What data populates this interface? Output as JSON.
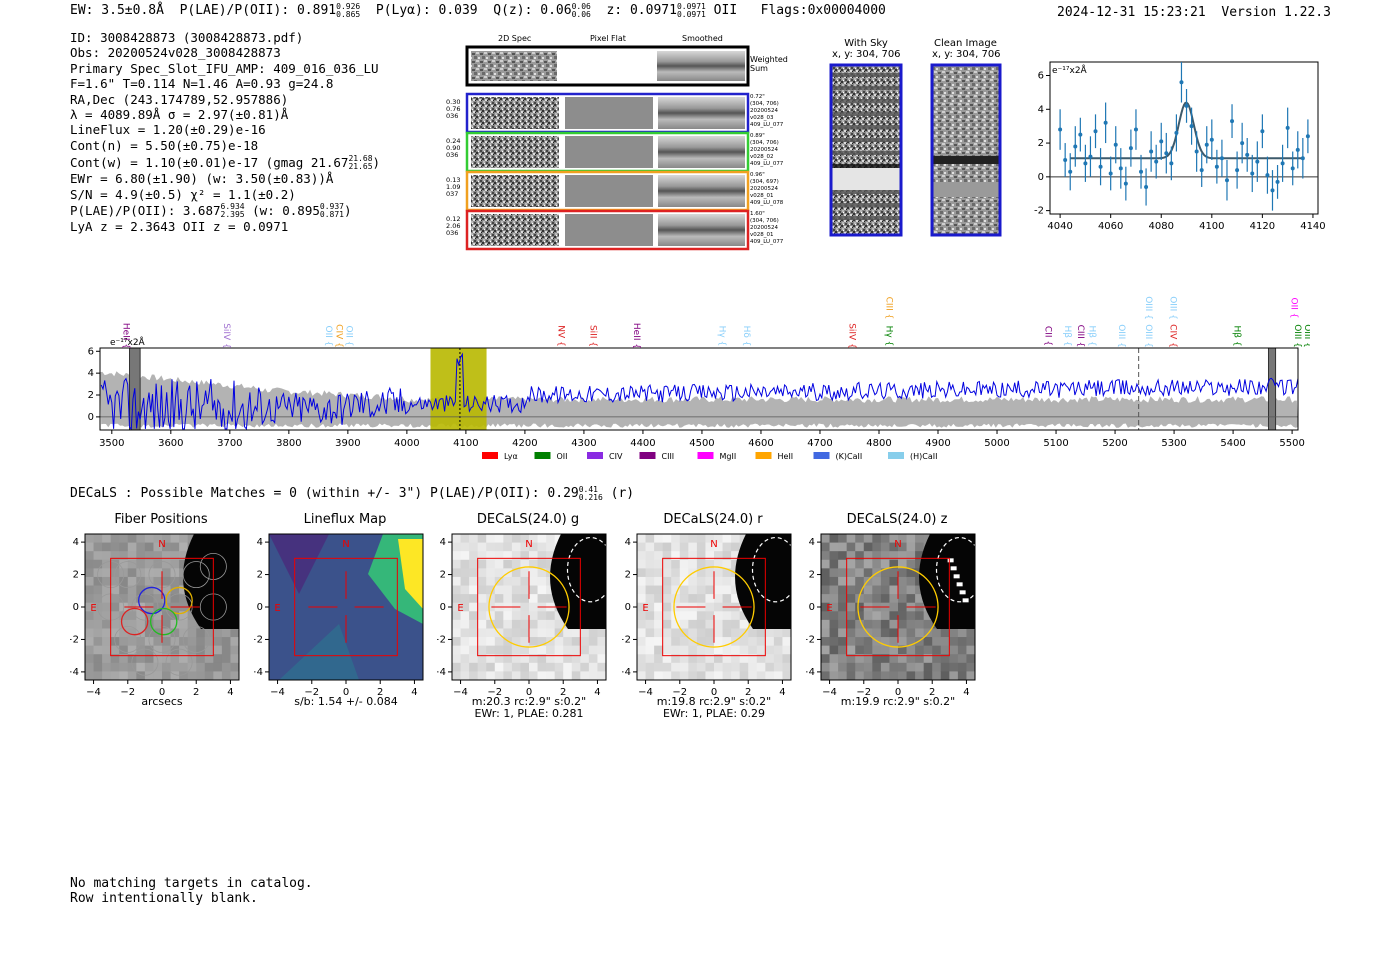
{
  "header": {
    "ew": "EW: 3.5±0.8Å",
    "plae": "P(LAE)/P(OII): 0.891",
    "plae_hi": "0.926",
    "plae_lo": "0.865",
    "plya": "P(Lyα): 0.039",
    "qz": "Q(z): 0.06",
    "qz_hi": "0.06",
    "qz_lo": "0.06",
    "z": "z: 0.0971",
    "z_hi": "0.0971",
    "z_lo": "0.0971",
    "z_line": "OII",
    "flags": "Flags:0x00004000",
    "timestamp": "2024-12-31 15:23:21",
    "version": "Version 1.22.3"
  },
  "info": {
    "lines": [
      "ID: 3008428873 (3008428873.pdf)",
      "Obs: 20200524v028_3008428873",
      "Primary Spec_Slot_IFU_AMP: 409_016_036_LU",
      "F=1.6\"  T=0.114  N=1.46  A=0.93  g=24.8",
      "RA,Dec (243.174789,52.957886)",
      "λ = 4089.89Å   σ = 2.97(±0.81)Å",
      "LineFlux = 1.20(±0.29)e-16",
      "Cont(n) = 5.50(±0.75)e-18"
    ],
    "contw": "Cont(w) = 1.10(±0.01)e-17 (gmag 21.67",
    "contw_hi": "21.68",
    "contw_lo": "21.65",
    "contw_end": ")",
    "ewr": "EWr = 6.80(±1.90) (w: 3.50(±0.83))Å",
    "sn": "S/N = 4.9(±0.5)  χ² = 1.1(±0.2)",
    "plae": "P(LAE)/P(OII): 3.687",
    "plae_hi": "6.934",
    "plae_lo": "2.395",
    "plae_w": "(w: 0.895",
    "plae_w_hi": "0.937",
    "plae_w_lo": "0.871",
    "plae_w_end": ")",
    "lyaz": "LyA z = 2.3643   OII z = 0.0971"
  },
  "cutouts": {
    "headers": [
      "2D Spec",
      "Pixel Flat",
      "Smoothed"
    ],
    "weighted_label": "Weighted Sum",
    "rows": [
      {
        "color": "#2222cc",
        "left": [
          "0.30",
          "0.76",
          "036"
        ],
        "right": [
          "0.72\"",
          "(304, 706)",
          "20200524",
          "v028_03",
          "409_LU_077"
        ]
      },
      {
        "color": "#33cc33",
        "left": [
          "0.24",
          "0.90",
          "036"
        ],
        "right": [
          "0.89\"",
          "(304, 706)",
          "20200524",
          "v028_02",
          "409_LU_077"
        ]
      },
      {
        "color": "#f0a020",
        "left": [
          "0.13",
          "1.09",
          "037"
        ],
        "right": [
          "0.96\"",
          "(304, 697)",
          "20200524",
          "v028_01",
          "409_LU_078"
        ]
      },
      {
        "color": "#dd2222",
        "left": [
          "0.12",
          "2.06",
          "036"
        ],
        "right": [
          "1.60\"",
          "(304, 706)",
          "20200524",
          "v028_01",
          "409_LU_077"
        ]
      }
    ]
  },
  "sky": {
    "with_sky_title": "With Sky",
    "with_sky_coords": "x, y: 304, 706",
    "clean_title": "Clean Image",
    "clean_coords": "x, y: 304, 706"
  },
  "chart_data": [
    {
      "type": "scatter",
      "name": "line-fit",
      "ylabel_scale": "e⁻¹⁷x2Å",
      "xlim": [
        4036,
        4142
      ],
      "ylim": [
        -2.2,
        6.8
      ],
      "xticks": [
        4040,
        4060,
        4080,
        4100,
        4120,
        4140
      ],
      "yticks": [
        -2,
        0,
        2,
        4,
        6
      ],
      "x": [
        4040,
        4042,
        4044,
        4046,
        4048,
        4050,
        4052,
        4054,
        4056,
        4058,
        4060,
        4062,
        4064,
        4066,
        4068,
        4070,
        4072,
        4074,
        4076,
        4078,
        4080,
        4082,
        4084,
        4086,
        4088,
        4090,
        4092,
        4094,
        4096,
        4098,
        4100,
        4102,
        4104,
        4106,
        4108,
        4110,
        4112,
        4114,
        4116,
        4118,
        4120,
        4122,
        4124,
        4126,
        4128,
        4130,
        4132,
        4134,
        4136,
        4138
      ],
      "y": [
        2.8,
        1.0,
        0.3,
        1.8,
        2.5,
        0.8,
        1.2,
        2.7,
        0.6,
        3.2,
        0.2,
        1.9,
        0.5,
        -0.4,
        1.7,
        2.8,
        0.3,
        -0.6,
        1.5,
        0.9,
        2.1,
        1.4,
        0.8,
        2.6,
        5.6,
        4.2,
        3.0,
        1.5,
        0.4,
        1.9,
        2.2,
        0.6,
        1.1,
        -0.2,
        3.3,
        0.4,
        2.0,
        1.3,
        0.2,
        0.9,
        2.7,
        0.1,
        -0.8,
        -0.3,
        0.8,
        2.9,
        0.5,
        1.6,
        1.1,
        2.4
      ],
      "yerr": [
        1.2,
        1.0,
        1.1,
        1.2,
        1.0,
        1.1,
        1.2,
        1.0,
        1.1,
        1.2,
        1.0,
        1.1,
        1.2,
        1.0,
        1.1,
        1.2,
        1.0,
        1.1,
        1.2,
        1.0,
        1.1,
        1.2,
        1.0,
        1.1,
        1.2,
        1.0,
        1.1,
        1.2,
        1.0,
        1.1,
        1.2,
        1.0,
        1.1,
        1.2,
        1.0,
        1.1,
        1.2,
        1.0,
        1.1,
        1.2,
        1.0,
        1.1,
        1.2,
        1.0,
        1.1,
        1.2,
        1.0,
        1.1,
        1.2,
        1.0
      ],
      "fit": {
        "continuum": 1.1,
        "amplitude": 3.3,
        "center": 4089.9,
        "sigma": 2.97
      }
    },
    {
      "type": "line",
      "name": "full-spectrum",
      "ylabel_scale": "e⁻¹⁷x2Å",
      "xlim": [
        3480,
        5510
      ],
      "ylim": [
        -1.2,
        6.3
      ],
      "xticks": [
        3500,
        3600,
        3700,
        3800,
        3900,
        4000,
        4100,
        4200,
        4300,
        4400,
        4500,
        4600,
        4700,
        4800,
        4900,
        5000,
        5100,
        5200,
        5300,
        5400,
        5500
      ],
      "yticks": [
        0,
        2,
        4,
        6
      ],
      "highlight_band": [
        4040,
        4135
      ],
      "line_center": 4089.9,
      "dashed_marker": 5240,
      "masked_bands": [
        [
          3530,
          3548
        ],
        [
          5460,
          5472
        ]
      ],
      "lines": [
        {
          "label": "HeII",
          "wave": 3515,
          "color": "#800080",
          "row": 2
        },
        {
          "label": "SiIV",
          "wave": 3685,
          "color": "#a070d0",
          "row": 2
        },
        {
          "label": "OII",
          "wave": 3858,
          "color": "#87cefa",
          "row": 2
        },
        {
          "label": "CIV",
          "wave": 3876,
          "color": "#f0a020",
          "row": 2
        },
        {
          "label": "OII",
          "wave": 3893,
          "color": "#87cefa",
          "row": 2
        },
        {
          "label": "NV",
          "wave": 4252,
          "color": "#dd2222",
          "row": 2
        },
        {
          "label": "SiII",
          "wave": 4306,
          "color": "#dd2222",
          "row": 2
        },
        {
          "label": "HeII",
          "wave": 4380,
          "color": "#800080",
          "row": 2
        },
        {
          "label": "Hγ",
          "wave": 4525,
          "color": "#87cefa",
          "row": 2
        },
        {
          "label": "Hδ",
          "wave": 4566,
          "color": "#87cefa",
          "row": 2
        },
        {
          "label": "SiIV",
          "wave": 4745,
          "color": "#dd2222",
          "row": 2
        },
        {
          "label": "CIII",
          "wave": 4808,
          "color": "#f0a020",
          "row": 0
        },
        {
          "label": "Hγ",
          "wave": 4808,
          "color": "#008000",
          "row": 2
        },
        {
          "label": "CII",
          "wave": 5077,
          "color": "#800080",
          "row": 2
        },
        {
          "label": "Hβ",
          "wave": 5110,
          "color": "#87cefa",
          "row": 2
        },
        {
          "label": "CIII",
          "wave": 5132,
          "color": "#800080",
          "row": 2
        },
        {
          "label": "Hβ",
          "wave": 5152,
          "color": "#87cefa",
          "row": 2
        },
        {
          "label": "OIII",
          "wave": 5202,
          "color": "#87cefa",
          "row": 2
        },
        {
          "label": "OIII",
          "wave": 5247,
          "color": "#87cefa",
          "row": 0
        },
        {
          "label": "OIII",
          "wave": 5247,
          "color": "#87cefa",
          "row": 2
        },
        {
          "label": "OIII",
          "wave": 5289,
          "color": "#87cefa",
          "row": 0
        },
        {
          "label": "CIV",
          "wave": 5289,
          "color": "#dd2222",
          "row": 2
        },
        {
          "label": "Hβ",
          "wave": 5397,
          "color": "#008000",
          "row": 2
        },
        {
          "label": "OII",
          "wave": 5494,
          "color": "#ff00ff",
          "row": 0
        },
        {
          "label": "OIII",
          "wave": 5500,
          "color": "#008000",
          "row": 2
        },
        {
          "label": "OIII",
          "wave": 5555,
          "color": "#008000",
          "row": 2
        }
      ],
      "legend": [
        {
          "label": "Lyα",
          "color": "#ff0000"
        },
        {
          "label": "OII",
          "color": "#008000"
        },
        {
          "label": "CIV",
          "color": "#8a2be2"
        },
        {
          "label": "CIII",
          "color": "#800080"
        },
        {
          "label": "MgII",
          "color": "#ff00ff"
        },
        {
          "label": "HeII",
          "color": "#ffa500"
        },
        {
          "label": "(K)CaII",
          "color": "#4169e1"
        },
        {
          "label": "(H)CaII",
          "color": "#87ceeb"
        }
      ]
    }
  ],
  "decals": {
    "summary": "DECaLS : Possible Matches = 0 (within +/- 3\")  P(LAE)/P(OII): 0.29",
    "summary_hi": "0.41",
    "summary_lo": "0.216",
    "summary_end": "(r)",
    "ticks": [
      "−4",
      "−2",
      "0",
      "2",
      "4"
    ],
    "north": "N",
    "east": "E",
    "panels": [
      {
        "title": "Fiber Positions",
        "caption": [
          "arcsecs"
        ]
      },
      {
        "title": "Lineflux Map",
        "caption": [
          "s/b: 1.54 +/- 0.084"
        ]
      },
      {
        "title": "DECaLS(24.0) g",
        "caption": [
          "m:20.3 rc:2.9\"  s:0.2\"",
          "EWr: 1, PLAE: 0.281"
        ]
      },
      {
        "title": "DECaLS(24.0) r",
        "caption": [
          "m:19.8 rc:2.9\"  s:0.2\"",
          "EWr: 1, PLAE: 0.29"
        ]
      },
      {
        "title": "DECaLS(24.0) z",
        "caption": [
          "m:19.9 rc:2.9\"  s:0.2\""
        ]
      }
    ]
  },
  "footer": {
    "line1": "No matching targets in catalog.",
    "line2": "Row intentionally blank."
  }
}
